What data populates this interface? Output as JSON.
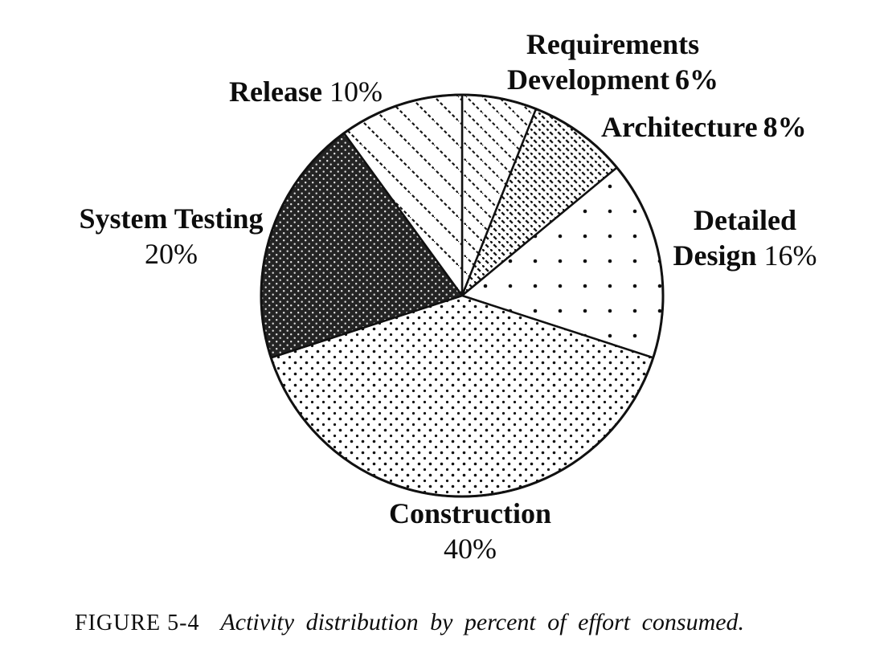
{
  "chart_data": {
    "type": "pie",
    "title": "",
    "unit": "%",
    "start_angle_deg": 0,
    "direction": "clockwise",
    "slices": [
      {
        "label": "Requirements Development",
        "value": 6,
        "pattern": "diagonal-medium"
      },
      {
        "label": "Architecture",
        "value": 8,
        "pattern": "diagonal-dense"
      },
      {
        "label": "Detailed Design",
        "value": 16,
        "pattern": "dots-sparse"
      },
      {
        "label": "Construction",
        "value": 40,
        "pattern": "dots-dense"
      },
      {
        "label": "System Testing",
        "value": 20,
        "pattern": "dark-mesh"
      },
      {
        "label": "Release",
        "value": 10,
        "pattern": "diagonal-sparse"
      }
    ]
  },
  "labels": {
    "requirements": {
      "line1": "Requirements",
      "line2_name": "Development",
      "pct": "6%"
    },
    "architecture": {
      "name": "Architecture",
      "pct": "8%"
    },
    "detailed": {
      "line1": "Detailed",
      "line2_name": "Design",
      "pct": "16%"
    },
    "construction": {
      "name": "Construction",
      "pct": "40%"
    },
    "system_testing": {
      "name": "System Testing",
      "pct": "20%"
    },
    "release": {
      "name": "Release",
      "pct": "10%"
    }
  },
  "caption": {
    "figure_label": "FIGURE 5-4",
    "text": "Activity distribution by percent of effort consumed."
  },
  "colors": {
    "ink": "#111111",
    "paper": "#ffffff"
  }
}
